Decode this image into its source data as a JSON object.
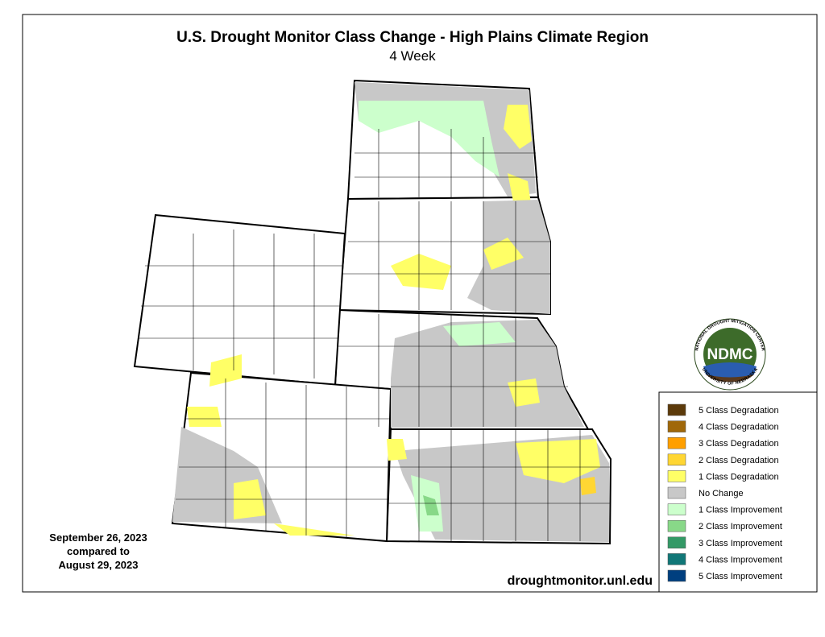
{
  "header": {
    "title": "U.S. Drought Monitor Class Change - High Plains Climate Region",
    "subtitle": "4 Week"
  },
  "date_note": {
    "lines": [
      "September 26, 2023",
      "compared to",
      "August 29, 2023"
    ]
  },
  "legend": {
    "items": [
      {
        "label": "5 Class Degradation",
        "color": "#5c3a0a"
      },
      {
        "label": "4 Class Degradation",
        "color": "#a0680a"
      },
      {
        "label": "3 Class Degradation",
        "color": "#ff9f00"
      },
      {
        "label": "2 Class Degradation",
        "color": "#ffd633"
      },
      {
        "label": "1 Class Degradation",
        "color": "#ffff66"
      },
      {
        "label": "No Change",
        "color": "#c8c8c8"
      },
      {
        "label": "1 Class Improvement",
        "color": "#ccffcc"
      },
      {
        "label": "2 Class Improvement",
        "color": "#88d888"
      },
      {
        "label": "3 Class Improvement",
        "color": "#339966"
      },
      {
        "label": "4 Class Improvement",
        "color": "#117777"
      },
      {
        "label": "5 Class Improvement",
        "color": "#003f7f"
      }
    ]
  },
  "website": "droughtmonitor.unl.edu",
  "logo": {
    "acronym": "NDMC",
    "ring_top": "NATIONAL DROUGHT MITIGATION CENTER",
    "ring_bottom": "UNIVERSITY OF NEBRASKA"
  }
}
